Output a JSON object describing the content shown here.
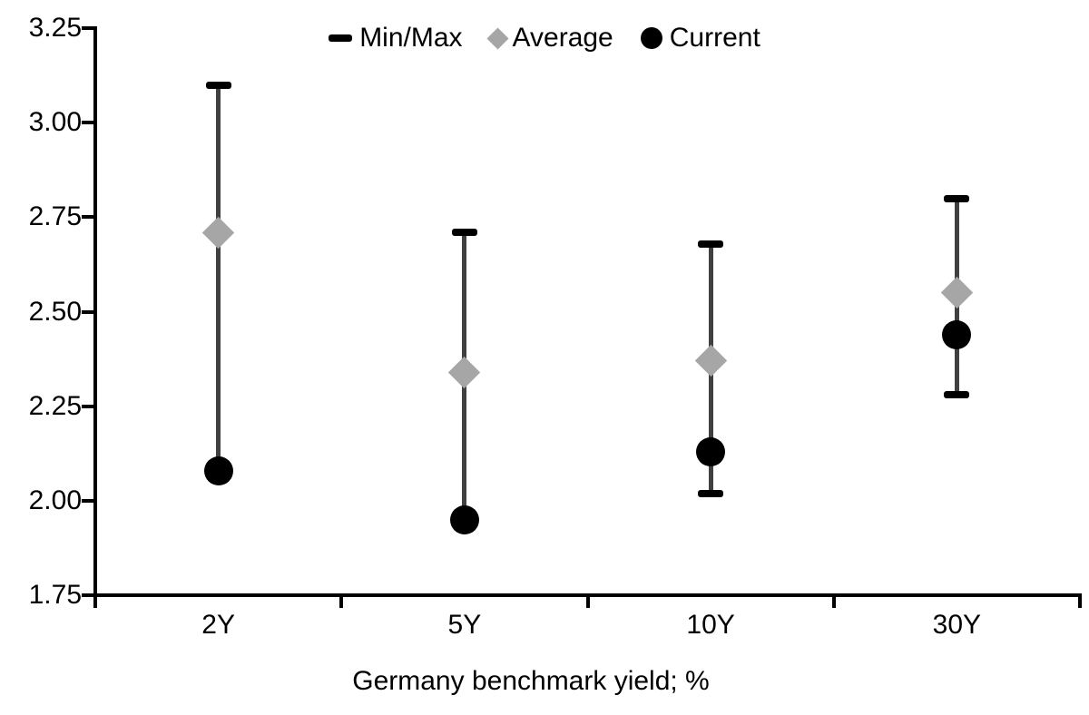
{
  "chart_data": {
    "type": "scatter",
    "title": "",
    "xlabel": "Germany benchmark yield; %",
    "ylabel": "",
    "categories": [
      "2Y",
      "5Y",
      "10Y",
      "30Y"
    ],
    "ylim": [
      1.75,
      3.25
    ],
    "ytick_step": 0.25,
    "ytick_labels": [
      "3.25",
      "3.00",
      "2.75",
      "2.50",
      "2.25",
      "2.00",
      "1.75"
    ],
    "grid": false,
    "legend_position": "top-center",
    "legend": [
      {
        "label": "Min/Max",
        "marker": "dash-icon",
        "color": "#000000"
      },
      {
        "label": "Average",
        "marker": "diamond-icon",
        "color": "#a6a6a6"
      },
      {
        "label": "Current",
        "marker": "circle-icon",
        "color": "#000000"
      }
    ],
    "series": [
      {
        "name": "Max",
        "values": [
          3.1,
          2.71,
          2.68,
          2.8
        ]
      },
      {
        "name": "Min",
        "values": [
          2.08,
          1.95,
          2.02,
          2.28
        ]
      },
      {
        "name": "Average",
        "values": [
          2.71,
          2.34,
          2.37,
          2.55
        ]
      },
      {
        "name": "Current",
        "values": [
          2.08,
          1.95,
          2.13,
          2.44
        ]
      }
    ],
    "colors": {
      "axis": "#000000",
      "error_line": "#404040",
      "minmax_cap": "#000000",
      "average": "#a6a6a6",
      "current": "#000000",
      "background": "#ffffff"
    }
  }
}
